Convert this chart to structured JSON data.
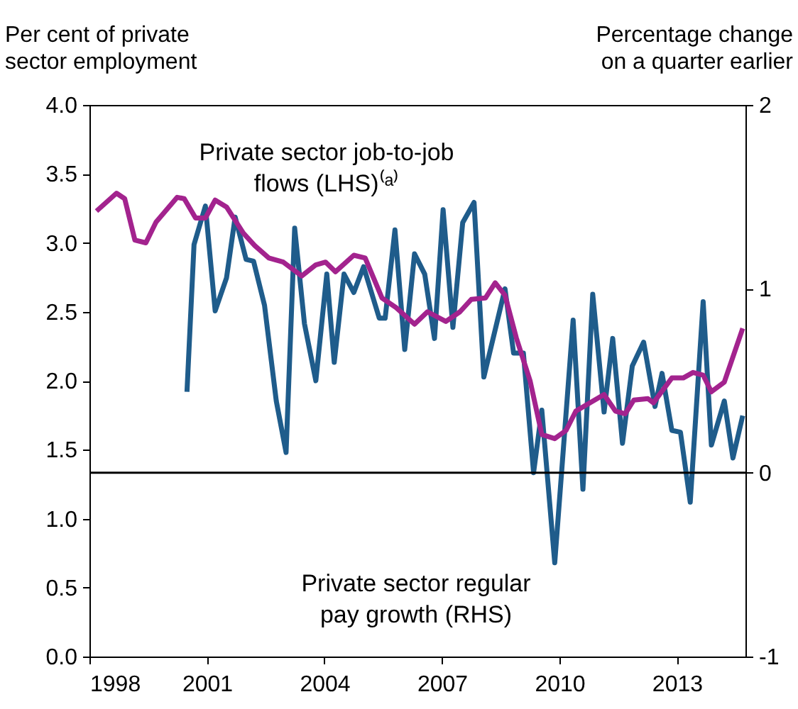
{
  "chart_data": {
    "type": "line",
    "ylabel": "Per cent of private\nsector employment",
    "y2label": "Percentage change\non a quarter earlier",
    "xlim": [
      1998,
      2014.75
    ],
    "xticks": [
      1998,
      2001,
      2004,
      2007,
      2010,
      2013
    ],
    "ylim": [
      0,
      4
    ],
    "yticks": [
      {
        "value": 0,
        "label": "0.0"
      },
      0.5,
      {
        "value": 1,
        "label": "1.0"
      },
      1.5,
      {
        "value": 2,
        "label": "2.0"
      },
      2.5,
      {
        "value": 3,
        "label": "3.0"
      },
      3.5,
      {
        "value": 4,
        "label": "4.0"
      }
    ],
    "y2lim": [
      -1,
      2
    ],
    "y2ticks": [
      -1,
      0,
      1,
      2
    ],
    "grid": false,
    "ref_lines": [
      {
        "axis": "y2",
        "value": 0,
        "color": "#000000"
      }
    ],
    "series": [
      {
        "name": "Private sector regular\npay growth (RHS)",
        "color": "#1f5c8b",
        "axis": "y2",
        "x": [
          2000.49,
          2000.67,
          2000.96,
          2001.21,
          2001.5,
          2001.72,
          2002.0,
          2002.19,
          2002.47,
          2002.77,
          2003.02,
          2003.24,
          2003.49,
          2003.78,
          2004.06,
          2004.25,
          2004.5,
          2004.75,
          2005.0,
          2005.4,
          2005.55,
          2005.8,
          2006.05,
          2006.3,
          2006.56,
          2006.81,
          2007.03,
          2007.28,
          2007.53,
          2007.82,
          2008.07,
          2008.61,
          2008.83,
          2009.08,
          2009.34,
          2009.55,
          2009.88,
          2010.35,
          2010.6,
          2010.85,
          2011.14,
          2011.36,
          2011.61,
          2011.86,
          2012.15,
          2012.44,
          2012.62,
          2012.87,
          2013.09,
          2013.34,
          2013.67,
          2013.88,
          2014.21,
          2014.43,
          2014.68
        ],
        "values": [
          0.44,
          1.24,
          1.45,
          0.88,
          1.06,
          1.39,
          1.16,
          1.15,
          0.91,
          0.39,
          0.11,
          1.33,
          0.81,
          0.5,
          1.08,
          0.6,
          1.08,
          0.98,
          1.12,
          0.84,
          0.84,
          1.32,
          0.67,
          1.19,
          1.08,
          0.73,
          1.43,
          0.79,
          1.36,
          1.47,
          0.52,
          1.0,
          0.65,
          0.65,
          0.0,
          0.34,
          -0.49,
          0.83,
          -0.09,
          0.97,
          0.33,
          0.73,
          0.16,
          0.58,
          0.71,
          0.36,
          0.54,
          0.23,
          0.22,
          -0.16,
          0.93,
          0.15,
          0.39,
          0.08,
          0.31
        ]
      },
      {
        "name": "Private sector job-to-job\nflows (LHS)⁽ᵃ⁾",
        "color": "#a3238e",
        "axis": "y",
        "x": [
          1998.18,
          1998.69,
          1998.9,
          1999.16,
          1999.44,
          1999.7,
          2000.24,
          2000.42,
          2000.71,
          2000.96,
          2001.21,
          2001.5,
          2001.93,
          2002.22,
          2002.58,
          2002.95,
          2003.42,
          2003.78,
          2004.03,
          2004.28,
          2004.75,
          2005.04,
          2005.47,
          2005.83,
          2006.3,
          2006.63,
          2007.1,
          2007.46,
          2007.75,
          2008.11,
          2008.36,
          2008.61,
          2008.9,
          2009.25,
          2009.55,
          2009.88,
          2010.17,
          2010.42,
          2011.14,
          2011.43,
          2011.68,
          2011.9,
          2012.26,
          2012.4,
          2012.87,
          2013.16,
          2013.41,
          2013.67,
          2013.88,
          2014.21,
          2014.68
        ],
        "values": [
          3.23,
          3.36,
          3.32,
          3.02,
          3.0,
          3.15,
          3.33,
          3.32,
          3.18,
          3.18,
          3.31,
          3.26,
          3.07,
          2.98,
          2.89,
          2.86,
          2.76,
          2.84,
          2.86,
          2.79,
          2.91,
          2.89,
          2.6,
          2.53,
          2.41,
          2.5,
          2.43,
          2.5,
          2.59,
          2.6,
          2.71,
          2.62,
          2.31,
          2.0,
          1.61,
          1.58,
          1.64,
          1.78,
          1.9,
          1.78,
          1.76,
          1.86,
          1.87,
          1.84,
          2.02,
          2.02,
          2.06,
          2.04,
          1.92,
          1.99,
          2.38
        ]
      }
    ]
  }
}
